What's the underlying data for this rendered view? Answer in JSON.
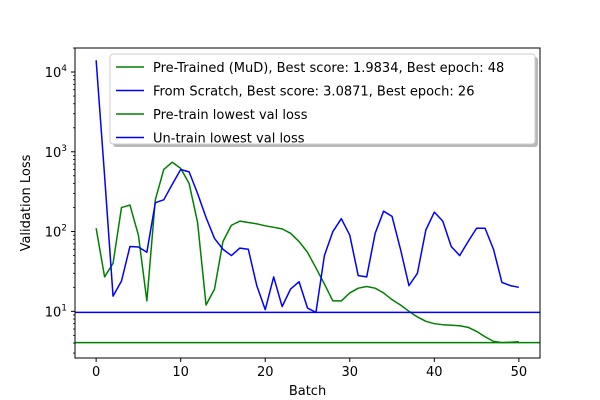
{
  "chart_data": {
    "type": "line",
    "xlabel": "Batch",
    "ylabel": "Validation Loss",
    "yscale": "log",
    "xlim": [
      -2.5,
      52.5
    ],
    "ylim": [
      2.6,
      20000
    ],
    "xticks": [
      0,
      10,
      20,
      30,
      40,
      50
    ],
    "yticks": [
      {
        "value": 10,
        "base": "10",
        "exp": "1"
      },
      {
        "value": 100,
        "base": "10",
        "exp": "2"
      },
      {
        "value": 1000,
        "base": "10",
        "exp": "3"
      },
      {
        "value": 10000,
        "base": "10",
        "exp": "4"
      }
    ],
    "legend_position": "top-right",
    "series": [
      {
        "name": "Pre-Trained (MuD), Best score: 1.9834, Best epoch: 48",
        "color": "#008000",
        "x": [
          0,
          1,
          2,
          3,
          4,
          5,
          6,
          7,
          8,
          9,
          10,
          11,
          12,
          13,
          14,
          15,
          16,
          17,
          18,
          19,
          20,
          21,
          22,
          23,
          24,
          25,
          26,
          27,
          28,
          29,
          30,
          31,
          32,
          33,
          34,
          35,
          36,
          37,
          38,
          39,
          40,
          41,
          42,
          43,
          44,
          45,
          46,
          47,
          48,
          49,
          50
        ],
        "y": [
          110,
          27,
          40,
          200,
          215,
          90,
          13.5,
          250,
          600,
          740,
          620,
          400,
          130,
          12,
          19,
          75,
          120,
          135,
          130,
          125,
          118,
          113,
          108,
          95,
          75,
          55,
          35,
          22,
          13.5,
          13.5,
          17,
          19.5,
          20.5,
          19.5,
          17,
          14,
          12,
          10,
          8.5,
          7.5,
          7,
          6.8,
          6.7,
          6.6,
          6.3,
          5.6,
          4.8,
          4.2,
          4.05,
          4.1,
          4.15
        ]
      },
      {
        "name": "From Scratch, Best score: 3.0871, Best epoch: 26",
        "color": "#0000ff",
        "x": [
          0,
          1,
          2,
          3,
          4,
          5,
          6,
          7,
          8,
          9,
          10,
          11,
          12,
          13,
          14,
          15,
          16,
          17,
          18,
          19,
          20,
          21,
          22,
          23,
          24,
          25,
          26,
          27,
          28,
          29,
          30,
          31,
          32,
          33,
          34,
          35,
          36,
          37,
          38,
          39,
          40,
          41,
          42,
          43,
          44,
          45,
          46,
          47,
          48,
          49,
          50
        ],
        "y": [
          14000,
          500,
          15.5,
          24,
          65,
          64,
          55,
          230,
          250,
          390,
          600,
          560,
          300,
          150,
          82,
          60,
          50,
          62,
          60,
          21,
          10.5,
          27,
          11.5,
          19,
          23.5,
          11,
          9.7,
          50,
          100,
          145,
          90,
          28,
          27,
          95,
          180,
          155,
          60,
          21,
          30,
          105,
          175,
          135,
          65,
          50,
          75,
          110,
          110,
          60,
          23,
          21,
          20
        ]
      },
      {
        "name": "Pre-train lowest val loss",
        "color": "#008000",
        "hline": 4.05
      },
      {
        "name": "Un-train lowest val loss",
        "color": "#0000ff",
        "hline": 9.7
      }
    ]
  }
}
